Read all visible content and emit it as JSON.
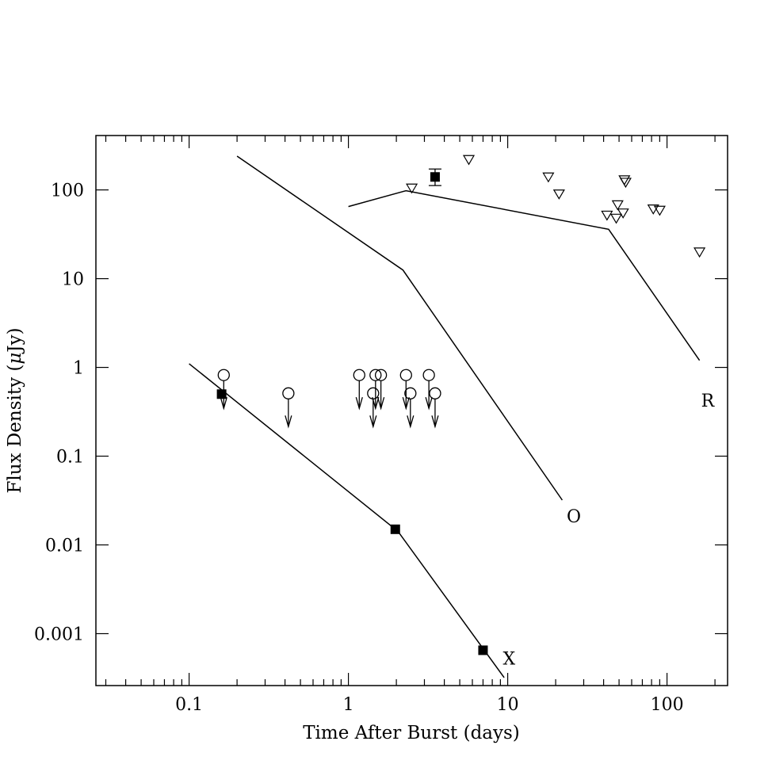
{
  "chart_data": {
    "type": "scatter",
    "xlabel": "Time After Burst (days)",
    "ylabel_parts": [
      "Flux Density (",
      "μ",
      "Jy)"
    ],
    "x_scale": "log",
    "y_scale": "log",
    "xlim": [
      0.026,
      240
    ],
    "ylim": [
      0.00026,
      410
    ],
    "grid": false,
    "x_ticks": [
      {
        "value": 0.1,
        "label": "0.1"
      },
      {
        "value": 1,
        "label": "1"
      },
      {
        "value": 10,
        "label": "10"
      },
      {
        "value": 100,
        "label": "100"
      }
    ],
    "y_ticks": [
      {
        "value": 0.001,
        "label": "0.001"
      },
      {
        "value": 0.01,
        "label": "0.01"
      },
      {
        "value": 0.1,
        "label": "0.1"
      },
      {
        "value": 1,
        "label": "1"
      },
      {
        "value": 10,
        "label": "10"
      },
      {
        "value": 100,
        "label": "100"
      }
    ],
    "model_curves": [
      {
        "label": "X",
        "label_at": [
          10.2,
          0.00045
        ],
        "points": [
          [
            0.1,
            1.1
          ],
          [
            2.05,
            0.0142
          ],
          [
            9.5,
            0.00032
          ]
        ]
      },
      {
        "label": "O",
        "label_at": [
          26,
          0.018
        ],
        "points": [
          [
            0.2,
            240
          ],
          [
            2.2,
            12.5
          ],
          [
            22,
            0.032
          ]
        ]
      },
      {
        "label": "R",
        "label_at": [
          180,
          0.36
        ],
        "points": [
          [
            1.0,
            65
          ],
          [
            2.3,
            98
          ],
          [
            43,
            36
          ],
          [
            160,
            1.2
          ]
        ]
      }
    ],
    "detections": [
      {
        "x": 0.16,
        "y": 0.5
      },
      {
        "x": 1.97,
        "y": 0.015
      },
      {
        "x": 7.0,
        "y": 0.00065
      },
      {
        "x": 3.5,
        "y": 140,
        "err_low": 112,
        "err_high": 172
      }
    ],
    "optical_upper_limits": [
      {
        "x": 0.165,
        "y": 0.82
      },
      {
        "x": 0.42,
        "y": 0.51
      },
      {
        "x": 1.17,
        "y": 0.82
      },
      {
        "x": 1.43,
        "y": 0.51
      },
      {
        "x": 1.48,
        "y": 0.82
      },
      {
        "x": 1.6,
        "y": 0.82
      },
      {
        "x": 2.3,
        "y": 0.82
      },
      {
        "x": 2.45,
        "y": 0.51
      },
      {
        "x": 3.2,
        "y": 0.82
      },
      {
        "x": 3.5,
        "y": 0.51
      }
    ],
    "radio_upper_limits": [
      {
        "x": 2.5,
        "y": 105
      },
      {
        "x": 5.7,
        "y": 220
      },
      {
        "x": 18,
        "y": 140
      },
      {
        "x": 21,
        "y": 90
      },
      {
        "x": 42,
        "y": 52
      },
      {
        "x": 48,
        "y": 48
      },
      {
        "x": 49,
        "y": 68
      },
      {
        "x": 53,
        "y": 55
      },
      {
        "x": 54,
        "y": 130
      },
      {
        "x": 55,
        "y": 122
      },
      {
        "x": 82,
        "y": 61
      },
      {
        "x": 90,
        "y": 59
      },
      {
        "x": 160,
        "y": 20
      }
    ]
  }
}
